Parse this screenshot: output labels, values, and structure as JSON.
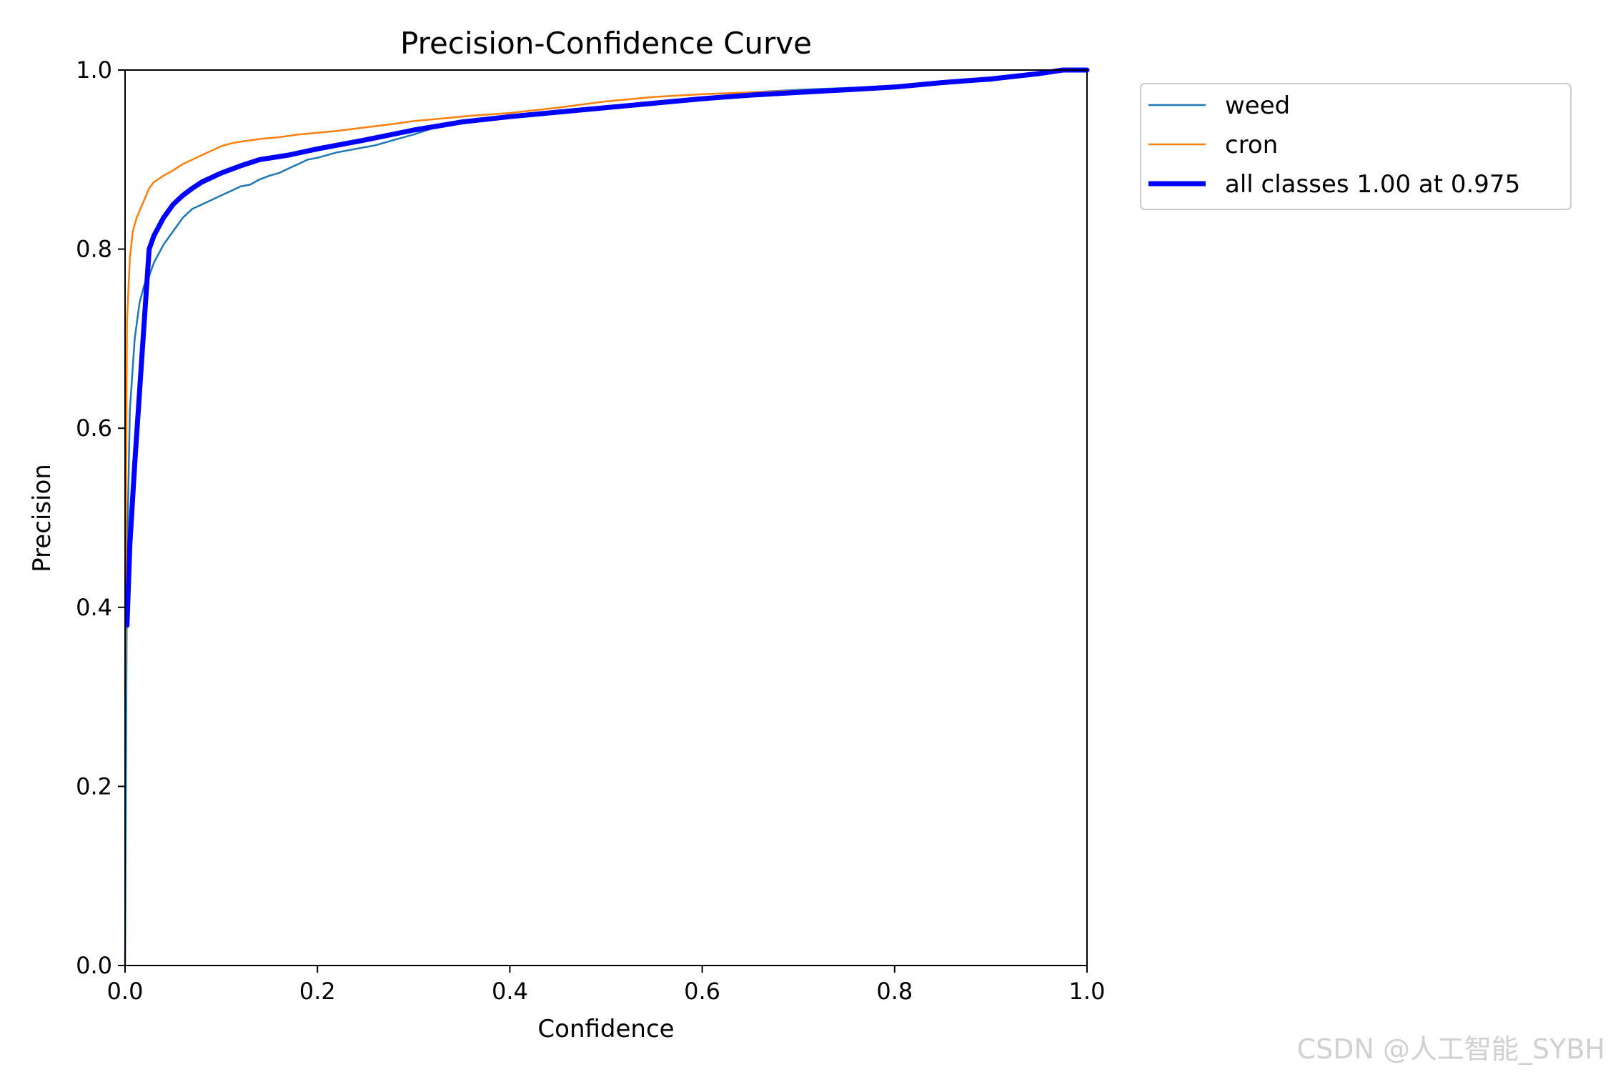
{
  "chart_data": {
    "type": "line",
    "title": "Precision-Confidence Curve",
    "xlabel": "Confidence",
    "ylabel": "Precision",
    "xlim": [
      0.0,
      1.0
    ],
    "ylim": [
      0.0,
      1.0
    ],
    "xticks": [
      "0.0",
      "0.2",
      "0.4",
      "0.6",
      "0.8",
      "1.0"
    ],
    "yticks": [
      "0.0",
      "0.2",
      "0.4",
      "0.6",
      "0.8",
      "1.0"
    ],
    "grid": false,
    "legend_position": "outside-top-right",
    "series": [
      {
        "name": "weed",
        "color": "#1f77b4",
        "x": [
          0.0,
          0.002,
          0.005,
          0.01,
          0.015,
          0.02,
          0.025,
          0.03,
          0.035,
          0.04,
          0.05,
          0.06,
          0.07,
          0.08,
          0.09,
          0.1,
          0.11,
          0.12,
          0.13,
          0.14,
          0.15,
          0.16,
          0.17,
          0.18,
          0.19,
          0.2,
          0.22,
          0.24,
          0.26,
          0.28,
          0.3,
          0.32,
          0.35,
          0.38,
          0.4,
          0.45,
          0.5,
          0.55,
          0.6,
          0.62,
          0.65,
          0.7,
          0.75,
          0.8,
          0.85,
          0.88,
          0.9,
          0.92,
          0.95,
          0.97,
          1.0
        ],
        "y": [
          0.0,
          0.45,
          0.62,
          0.7,
          0.74,
          0.76,
          0.77,
          0.785,
          0.795,
          0.805,
          0.82,
          0.835,
          0.845,
          0.85,
          0.855,
          0.86,
          0.865,
          0.87,
          0.872,
          0.878,
          0.882,
          0.885,
          0.89,
          0.895,
          0.9,
          0.902,
          0.908,
          0.912,
          0.916,
          0.922,
          0.928,
          0.935,
          0.942,
          0.946,
          0.948,
          0.952,
          0.958,
          0.962,
          0.968,
          0.97,
          0.975,
          0.978,
          0.98,
          0.982,
          0.985,
          0.987,
          0.988,
          0.992,
          0.998,
          1.0,
          1.0
        ]
      },
      {
        "name": "cron",
        "color": "#ff7f0e",
        "x": [
          0.0,
          0.002,
          0.005,
          0.008,
          0.012,
          0.016,
          0.02,
          0.025,
          0.03,
          0.04,
          0.05,
          0.06,
          0.07,
          0.08,
          0.09,
          0.1,
          0.11,
          0.12,
          0.14,
          0.16,
          0.18,
          0.2,
          0.22,
          0.25,
          0.28,
          0.3,
          0.33,
          0.36,
          0.4,
          0.45,
          0.5,
          0.55,
          0.6,
          0.65,
          0.7,
          0.75,
          0.8,
          0.85,
          0.9,
          0.93,
          0.95,
          0.97,
          1.0
        ],
        "y": [
          0.3,
          0.72,
          0.79,
          0.82,
          0.835,
          0.845,
          0.855,
          0.868,
          0.875,
          0.882,
          0.888,
          0.895,
          0.9,
          0.905,
          0.91,
          0.915,
          0.918,
          0.92,
          0.923,
          0.925,
          0.928,
          0.93,
          0.932,
          0.936,
          0.94,
          0.943,
          0.946,
          0.949,
          0.952,
          0.958,
          0.965,
          0.97,
          0.973,
          0.975,
          0.977,
          0.979,
          0.982,
          0.986,
          0.99,
          0.994,
          0.997,
          1.0,
          1.0
        ]
      },
      {
        "name": "all classes 1.00 at 0.975",
        "color": "#0000ff",
        "x": [
          0.002,
          0.005,
          0.01,
          0.015,
          0.02,
          0.025,
          0.03,
          0.04,
          0.05,
          0.06,
          0.07,
          0.08,
          0.1,
          0.12,
          0.14,
          0.17,
          0.2,
          0.25,
          0.3,
          0.35,
          0.4,
          0.45,
          0.5,
          0.55,
          0.6,
          0.65,
          0.7,
          0.75,
          0.8,
          0.85,
          0.9,
          0.95,
          0.975,
          1.0
        ],
        "y": [
          0.38,
          0.47,
          0.56,
          0.64,
          0.72,
          0.8,
          0.815,
          0.835,
          0.85,
          0.86,
          0.868,
          0.875,
          0.885,
          0.893,
          0.9,
          0.905,
          0.912,
          0.922,
          0.933,
          0.942,
          0.948,
          0.953,
          0.958,
          0.963,
          0.968,
          0.972,
          0.975,
          0.978,
          0.981,
          0.986,
          0.99,
          0.996,
          1.0,
          1.0
        ]
      }
    ]
  },
  "watermark": "CSDN @人工智能_SYBH"
}
